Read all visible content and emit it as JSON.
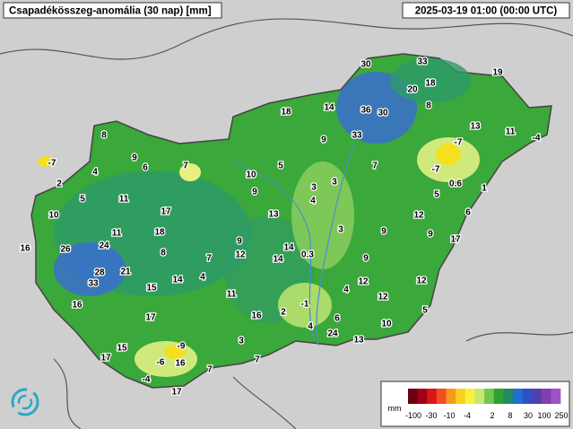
{
  "title": "Csapadékösszeg-anomália (30 nap) [mm]",
  "timestamp": "2025-03-19 01:00 (00:00 UTC)",
  "stations": [
    30,
    33,
    19,
    20,
    18,
    8,
    18,
    14,
    36,
    30,
    13,
    11,
    -4,
    8,
    9,
    33,
    -7,
    9,
    7,
    5,
    7,
    -7,
    -7,
    6,
    4,
    10,
    3,
    0.6,
    2,
    9,
    3,
    1,
    5,
    11,
    5,
    4,
    17,
    13,
    12,
    6,
    10,
    11,
    18,
    3,
    9,
    9,
    17,
    16,
    26,
    24,
    9,
    14,
    8,
    12,
    14,
    0.3,
    7,
    9,
    28,
    21,
    33,
    14,
    4,
    15,
    12,
    12,
    4,
    12,
    11,
    16,
    -1,
    2,
    16,
    5,
    17,
    6,
    10,
    4,
    24,
    13,
    3,
    15,
    -9,
    17,
    7,
    -6,
    16,
    7,
    -4,
    17
  ],
  "legend": {
    "unit": "mm",
    "labels": [
      "-100",
      "-30",
      "-10",
      "-4",
      "2",
      "8",
      "30",
      "100",
      "250"
    ]
  }
}
